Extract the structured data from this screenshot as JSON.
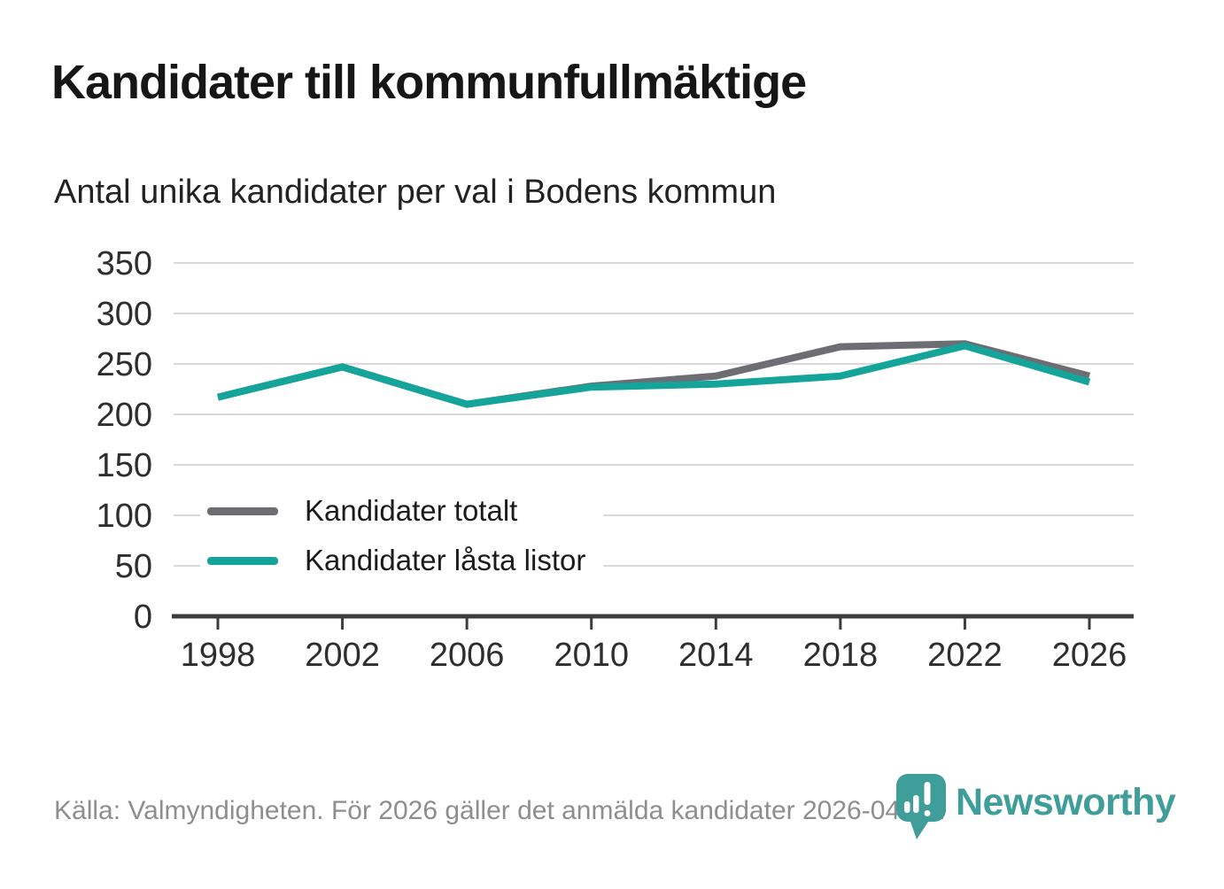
{
  "header": {
    "title": "Kandidater till kommunfullmäktige",
    "subtitle": "Antal unika kandidater per val i Bodens kommun"
  },
  "chart_data": {
    "type": "line",
    "categories": [
      "1998",
      "2002",
      "2006",
      "2010",
      "2014",
      "2018",
      "2022",
      "2026"
    ],
    "series": [
      {
        "name": "Kandidater totalt",
        "color": "#6d6d74",
        "values": [
          217,
          247,
          210,
          228,
          238,
          267,
          270,
          238
        ]
      },
      {
        "name": "Kandidater låsta listor",
        "color": "#14a49a",
        "values": [
          217,
          247,
          210,
          227,
          230,
          238,
          268,
          232
        ]
      }
    ],
    "ylim": [
      0,
      350
    ],
    "ytick_step": 50,
    "grid": true,
    "legend_position": "inside-left"
  },
  "colors": {
    "grid": "#d9d9d9",
    "axis": "#3c3c3c",
    "tick_label": "#2e2e2e",
    "footer_text": "#8e8e8e",
    "brand_teal": "#3f9e99"
  },
  "footer": {
    "source": "Källa: Valmyndigheten. För 2026 gäller det anmälda kandidater 2026-04-10.",
    "brand": "Newsworthy"
  }
}
